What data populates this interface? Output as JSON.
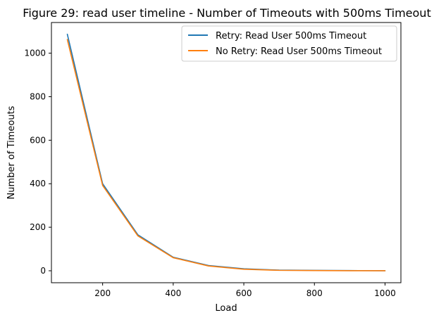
{
  "chart_data": {
    "type": "line",
    "title": "Figure 29: read user timeline - Number of Timeouts with 500ms Timeout",
    "xlabel": "Load",
    "ylabel": "Number of Timeouts",
    "xlim": [
      55,
      1045
    ],
    "ylim": [
      -55,
      1141
    ],
    "x_ticks": [
      200,
      400,
      600,
      800,
      1000
    ],
    "y_ticks": [
      0,
      200,
      400,
      600,
      800,
      1000
    ],
    "x": [
      100,
      200,
      300,
      400,
      500,
      600,
      700,
      800,
      900,
      1000
    ],
    "series": [
      {
        "name": "Retry: Read User 500ms Timeout",
        "color": "#1f77b4",
        "values": [
          1087,
          400,
          165,
          62,
          24,
          9,
          3,
          2,
          1,
          0
        ]
      },
      {
        "name": "No Retry: Read User 500ms Timeout",
        "color": "#ff7f0e",
        "values": [
          1063,
          392,
          160,
          60,
          22,
          7,
          2,
          1,
          0,
          0
        ]
      }
    ],
    "grid": false,
    "legend_position": "top-right"
  }
}
